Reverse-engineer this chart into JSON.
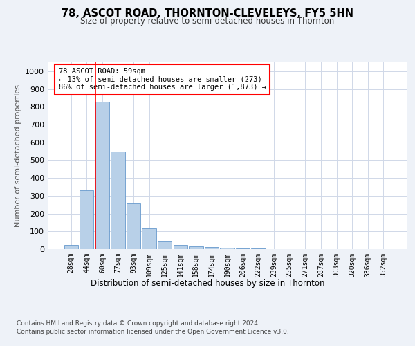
{
  "title": "78, ASCOT ROAD, THORNTON-CLEVELEYS, FY5 5HN",
  "subtitle": "Size of property relative to semi-detached houses in Thornton",
  "xlabel": "Distribution of semi-detached houses by size in Thornton",
  "ylabel": "Number of semi-detached properties",
  "categories": [
    "28sqm",
    "44sqm",
    "60sqm",
    "77sqm",
    "93sqm",
    "109sqm",
    "125sqm",
    "141sqm",
    "158sqm",
    "174sqm",
    "190sqm",
    "206sqm",
    "222sqm",
    "239sqm",
    "255sqm",
    "271sqm",
    "287sqm",
    "303sqm",
    "320sqm",
    "336sqm",
    "352sqm"
  ],
  "values": [
    25,
    330,
    830,
    550,
    255,
    115,
    45,
    22,
    15,
    13,
    8,
    4,
    2,
    1,
    1,
    0,
    0,
    0,
    0,
    0,
    0
  ],
  "bar_color": "#b8d0e8",
  "bar_edge_color": "#6699cc",
  "red_line_x": 2,
  "annotation_title": "78 ASCOT ROAD: 59sqm",
  "annotation_line1": "← 13% of semi-detached houses are smaller (273)",
  "annotation_line2": "86% of semi-detached houses are larger (1,873) →",
  "ylim": [
    0,
    1050
  ],
  "yticks": [
    0,
    100,
    200,
    300,
    400,
    500,
    600,
    700,
    800,
    900,
    1000
  ],
  "footer1": "Contains HM Land Registry data © Crown copyright and database right 2024.",
  "footer2": "Contains public sector information licensed under the Open Government Licence v3.0.",
  "bg_color": "#eef2f8",
  "plot_bg_color": "#ffffff",
  "grid_color": "#d0d8e8"
}
